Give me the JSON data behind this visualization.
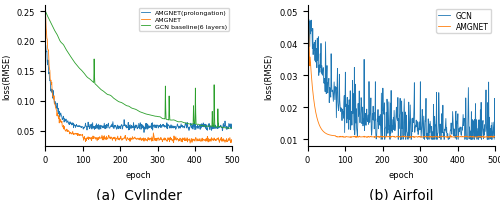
{
  "fig_width": 5.0,
  "fig_height": 2.01,
  "dpi": 100,
  "cylinder": {
    "xlabel": "epoch",
    "ylabel": "loss(RMSE)",
    "xlim": [
      0,
      500
    ],
    "ylim": [
      0.025,
      0.26
    ],
    "yticks": [
      0.05,
      0.1,
      0.15,
      0.2,
      0.25
    ],
    "subtitle": "(a)  Cylinder",
    "legend_labels": [
      "AMGNET(prolongation)",
      "AMGNET",
      "GCN baseline(6 layers)"
    ],
    "colors": [
      "#1f77b4",
      "#ff7f0e",
      "#2ca02c"
    ]
  },
  "airfoil": {
    "xlabel": "epoch",
    "ylabel": "loss(RMSE)",
    "xlim": [
      0,
      500
    ],
    "ylim": [
      0.008,
      0.052
    ],
    "yticks": [
      0.01,
      0.02,
      0.03,
      0.04,
      0.05
    ],
    "subtitle": "(b) Airfoil",
    "legend_labels": [
      "GCN",
      "AMGNET"
    ],
    "colors": [
      "#1f77b4",
      "#ff7f0e"
    ]
  },
  "subtitle_fontsize": 10,
  "label_fontsize": 6,
  "tick_fontsize": 6,
  "legend_fontsize_cyl": 4.5,
  "legend_fontsize_air": 5.5
}
